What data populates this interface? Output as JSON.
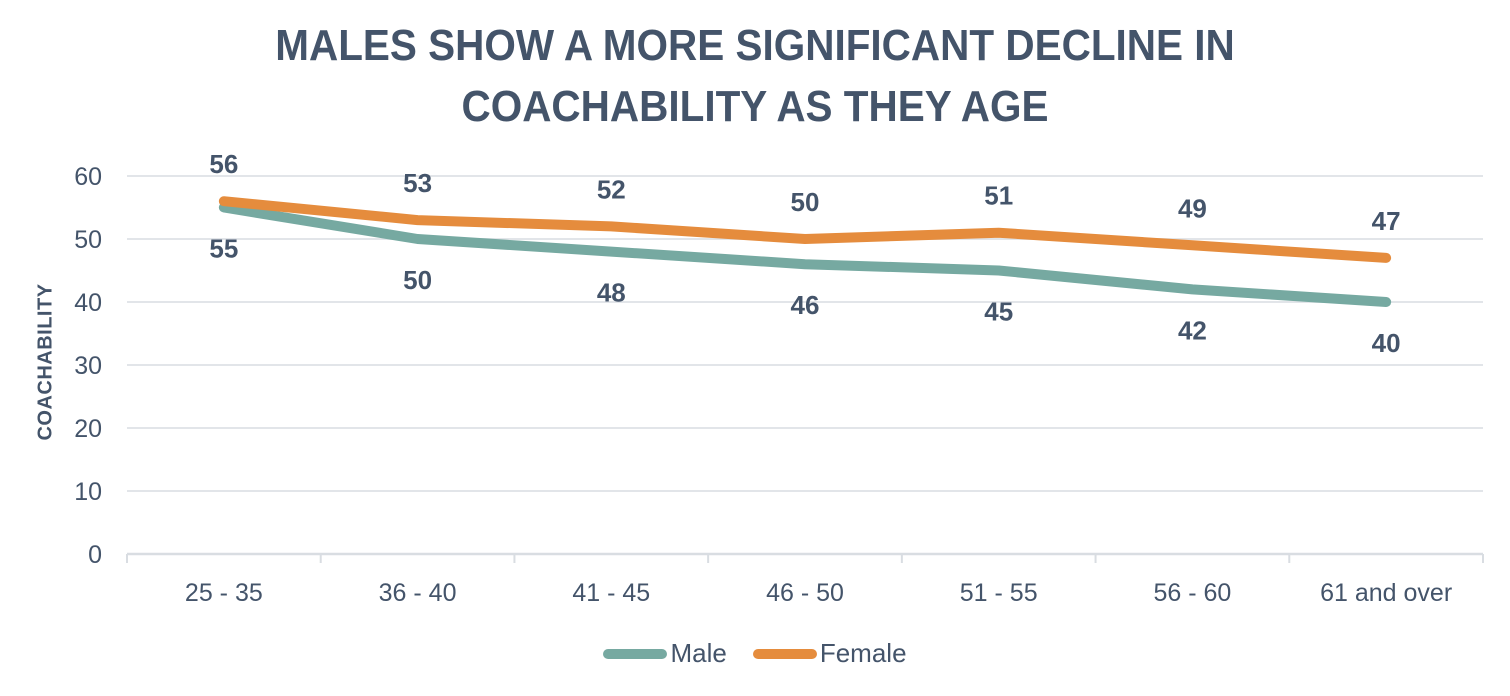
{
  "chart_data": {
    "type": "line",
    "title": "MALES SHOW A MORE SIGNIFICANT DECLINE IN COACHABILITY AS THEY AGE",
    "xlabel": "",
    "ylabel": "COACHABILITY",
    "categories": [
      "25 - 35",
      "36 - 40",
      "41 - 45",
      "46 - 50",
      "51 - 55",
      "56 - 60",
      "61 and over"
    ],
    "series": [
      {
        "name": "Male",
        "values": [
          55,
          50,
          48,
          46,
          45,
          42,
          40
        ],
        "color": "#76A9A1",
        "label_position": "below"
      },
      {
        "name": "Female",
        "values": [
          56,
          53,
          52,
          50,
          51,
          49,
          47
        ],
        "color": "#E58C3D",
        "label_position": "above"
      }
    ],
    "ylim": [
      0,
      60
    ],
    "yticks": [
      0,
      10,
      20,
      30,
      40,
      50,
      60
    ],
    "grid": true,
    "data_labels": true,
    "legend_position": "bottom"
  },
  "colors": {
    "text": "#44546A",
    "gridline": "#E2E5E9",
    "axis": "#D9DDE2",
    "background": "#FFFFFF"
  }
}
